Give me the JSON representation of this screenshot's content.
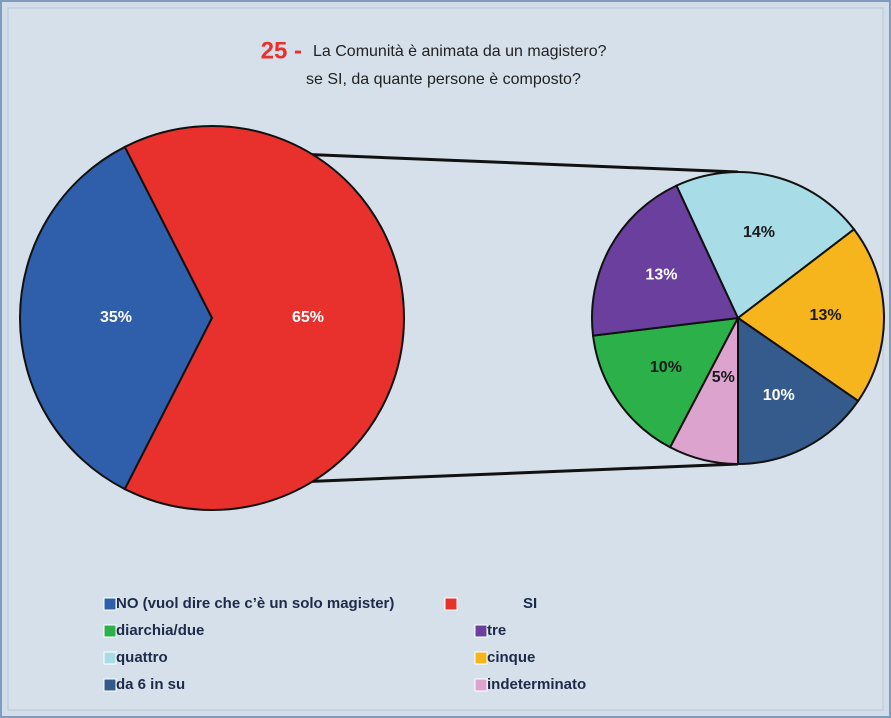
{
  "chart_data": {
    "type": "pie",
    "title_number": "25 -",
    "title": [
      "La Comunità è animata da un magistero?",
      "se SI, da quante persone è composto?"
    ],
    "pies": [
      {
        "categories": [
          "NO (vuol dire che c’è un solo magister)",
          "SI"
        ],
        "values": [
          35,
          65
        ],
        "value_labels": [
          "35%",
          "65%"
        ],
        "colors": [
          "#2f5fab",
          "#e8302d"
        ]
      },
      {
        "categories": [
          "diarchia/due",
          "tre",
          "quattro",
          "cinque",
          "da 6 in su",
          "indeterminato"
        ],
        "values": [
          10,
          13,
          14,
          13,
          10,
          5
        ],
        "value_labels": [
          "10%",
          "13%",
          "14%",
          "13%",
          "10%",
          "5%"
        ],
        "colors": [
          "#2bb04a",
          "#6b3f9e",
          "#a8dce6",
          "#f6b51d",
          "#355b8d",
          "#dca3cf"
        ]
      }
    ]
  }
}
